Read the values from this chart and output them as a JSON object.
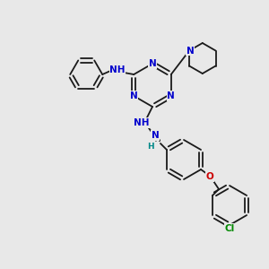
{
  "bg_color": "#e8e8e8",
  "bond_color": "#1a1a1a",
  "N_color": "#0000cc",
  "O_color": "#cc0000",
  "Cl_color": "#008800",
  "H_color": "#008888",
  "figsize": [
    3.0,
    3.0
  ],
  "dpi": 100,
  "lw": 1.3,
  "fs": 7.5,
  "xlim": [
    0,
    300
  ],
  "ylim": [
    300,
    0
  ]
}
